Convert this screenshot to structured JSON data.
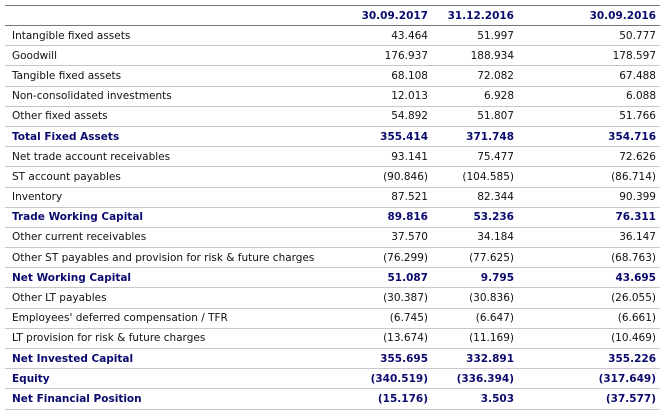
{
  "table": {
    "header": [
      "30.09.2017",
      "31.12.2016",
      "30.09.2016"
    ],
    "rows": [
      {
        "label": "Intangible fixed assets",
        "values": [
          "43.464",
          "51.997",
          "50.777"
        ]
      },
      {
        "label": "Goodwill",
        "values": [
          "176.937",
          "188.934",
          "178.597"
        ]
      },
      {
        "label": "Tangible fixed assets",
        "values": [
          "68.108",
          "72.082",
          "67.488"
        ]
      },
      {
        "label": "Non-consolidated investments",
        "values": [
          "12.013",
          "6.928",
          "6.088"
        ]
      },
      {
        "label": "Other fixed assets",
        "values": [
          "54.892",
          "51.807",
          "51.766"
        ]
      },
      {
        "label": "Total Fixed Assets",
        "values": [
          "355.414",
          "371.748",
          "354.716"
        ],
        "bold": true
      },
      {
        "label": "Net trade account receivables",
        "values": [
          "93.141",
          "75.477",
          "72.626"
        ]
      },
      {
        "label": "ST account payables",
        "values": [
          "(90.846)",
          "(104.585)",
          "(86.714)"
        ]
      },
      {
        "label": "Inventory",
        "values": [
          "87.521",
          "82.344",
          "90.399"
        ]
      },
      {
        "label": "Trade Working Capital",
        "values": [
          "89.816",
          "53.236",
          "76.311"
        ],
        "bold": true
      },
      {
        "label": "Other current receivables",
        "values": [
          "37.570",
          "34.184",
          "36.147"
        ]
      },
      {
        "label": "Other ST payables and provision for risk & future charges",
        "values": [
          "(76.299)",
          "(77.625)",
          "(68.763)"
        ]
      },
      {
        "label": "Net Working Capital",
        "values": [
          "51.087",
          "9.795",
          "43.695"
        ],
        "bold": true
      },
      {
        "label": "Other LT payables",
        "values": [
          "(30.387)",
          "(30.836)",
          "(26.055)"
        ]
      },
      {
        "label": "Employees' deferred compensation / TFR",
        "values": [
          "(6.745)",
          "(6.647)",
          "(6.661)"
        ]
      },
      {
        "label": "LT provision for risk & future charges",
        "values": [
          "(13.674)",
          "(11.169)",
          "(10.469)"
        ]
      },
      {
        "label": "Net Invested Capital",
        "values": [
          "355.695",
          "332.891",
          "355.226"
        ],
        "bold": true
      },
      {
        "label": "Equity",
        "values": [
          "(340.519)",
          "(336.394)",
          "(317.649)"
        ],
        "bold": true
      },
      {
        "label": "Net Financial Position",
        "values": [
          "(15.176)",
          "3.503",
          "(37.577)"
        ],
        "bold": true
      }
    ]
  }
}
